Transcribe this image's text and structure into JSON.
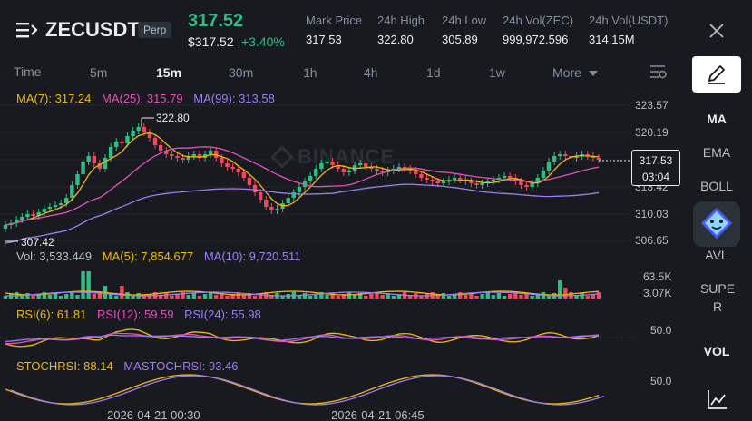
{
  "header": {
    "menu_icon": "menu-icon",
    "symbol": "ZECUSDT",
    "badge": "Perp",
    "last_price": "317.52",
    "last_price_usd": "$317.52",
    "change_pct": "+3.40%",
    "stats": [
      {
        "label": "Mark Price",
        "value": "317.53"
      },
      {
        "label": "24h High",
        "value": "322.80"
      },
      {
        "label": "24h Low",
        "value": "305.89"
      },
      {
        "label": "24h Vol(ZEC)",
        "value": "999,972.596"
      },
      {
        "label": "24h Vol(USDT)",
        "value": "314.15M"
      }
    ],
    "close_icon": "close-icon"
  },
  "timeframes": {
    "items": [
      "Time",
      "5m",
      "15m",
      "30m",
      "1h",
      "4h",
      "1d",
      "1w"
    ],
    "active": "15m",
    "more_label": "More"
  },
  "sidebar": {
    "items": [
      "MA",
      "EMA",
      "BOLL",
      "AVL",
      "SUPER",
      "VOL"
    ],
    "active_main": "MA",
    "active_sub": "VOL"
  },
  "main_chart": {
    "legend": [
      {
        "label": "MA(7): 317.24",
        "color": "#f0b90b"
      },
      {
        "label": "MA(25): 315.79",
        "color": "#e052b8"
      },
      {
        "label": "MA(99): 313.58",
        "color": "#9d7ff0"
      }
    ],
    "watermark": "BINANCE",
    "price_axis": [
      "323.57",
      "320.19",
      "313.42",
      "310.03",
      "306.65"
    ],
    "high_marker": "322.80",
    "low_marker": "307.42",
    "current_price_tag": "317.53",
    "countdown": "03:04"
  },
  "volume": {
    "legend": [
      {
        "label": "Vol: 3,533.449",
        "color": "#b7bdc6"
      },
      {
        "label": "MA(5): 7,854.677",
        "color": "#f0b90b"
      },
      {
        "label": "MA(10): 9,720.511",
        "color": "#9d7ff0"
      }
    ],
    "axis": [
      "63.5K",
      "3.07K"
    ]
  },
  "rsi": {
    "legend": [
      {
        "label": "RSI(6): 61.81",
        "color": "#f0b90b"
      },
      {
        "label": "RSI(12): 59.59",
        "color": "#e052b8"
      },
      {
        "label": "RSI(24): 55.98",
        "color": "#9d7ff0"
      }
    ],
    "axis": "50.0"
  },
  "stochrsi": {
    "legend": [
      {
        "label": "STOCHRSI: 88.14",
        "color": "#f0b90b"
      },
      {
        "label": "MASTOCHRSI: 93.46",
        "color": "#9d7ff0"
      }
    ],
    "axis": "50.0"
  },
  "time_axis": [
    "2026-04-21 00:30",
    "2026-04-21 06:45"
  ],
  "colors": {
    "up": "#2ebd85",
    "down": "#f6465d",
    "bg": "#181a20"
  }
}
